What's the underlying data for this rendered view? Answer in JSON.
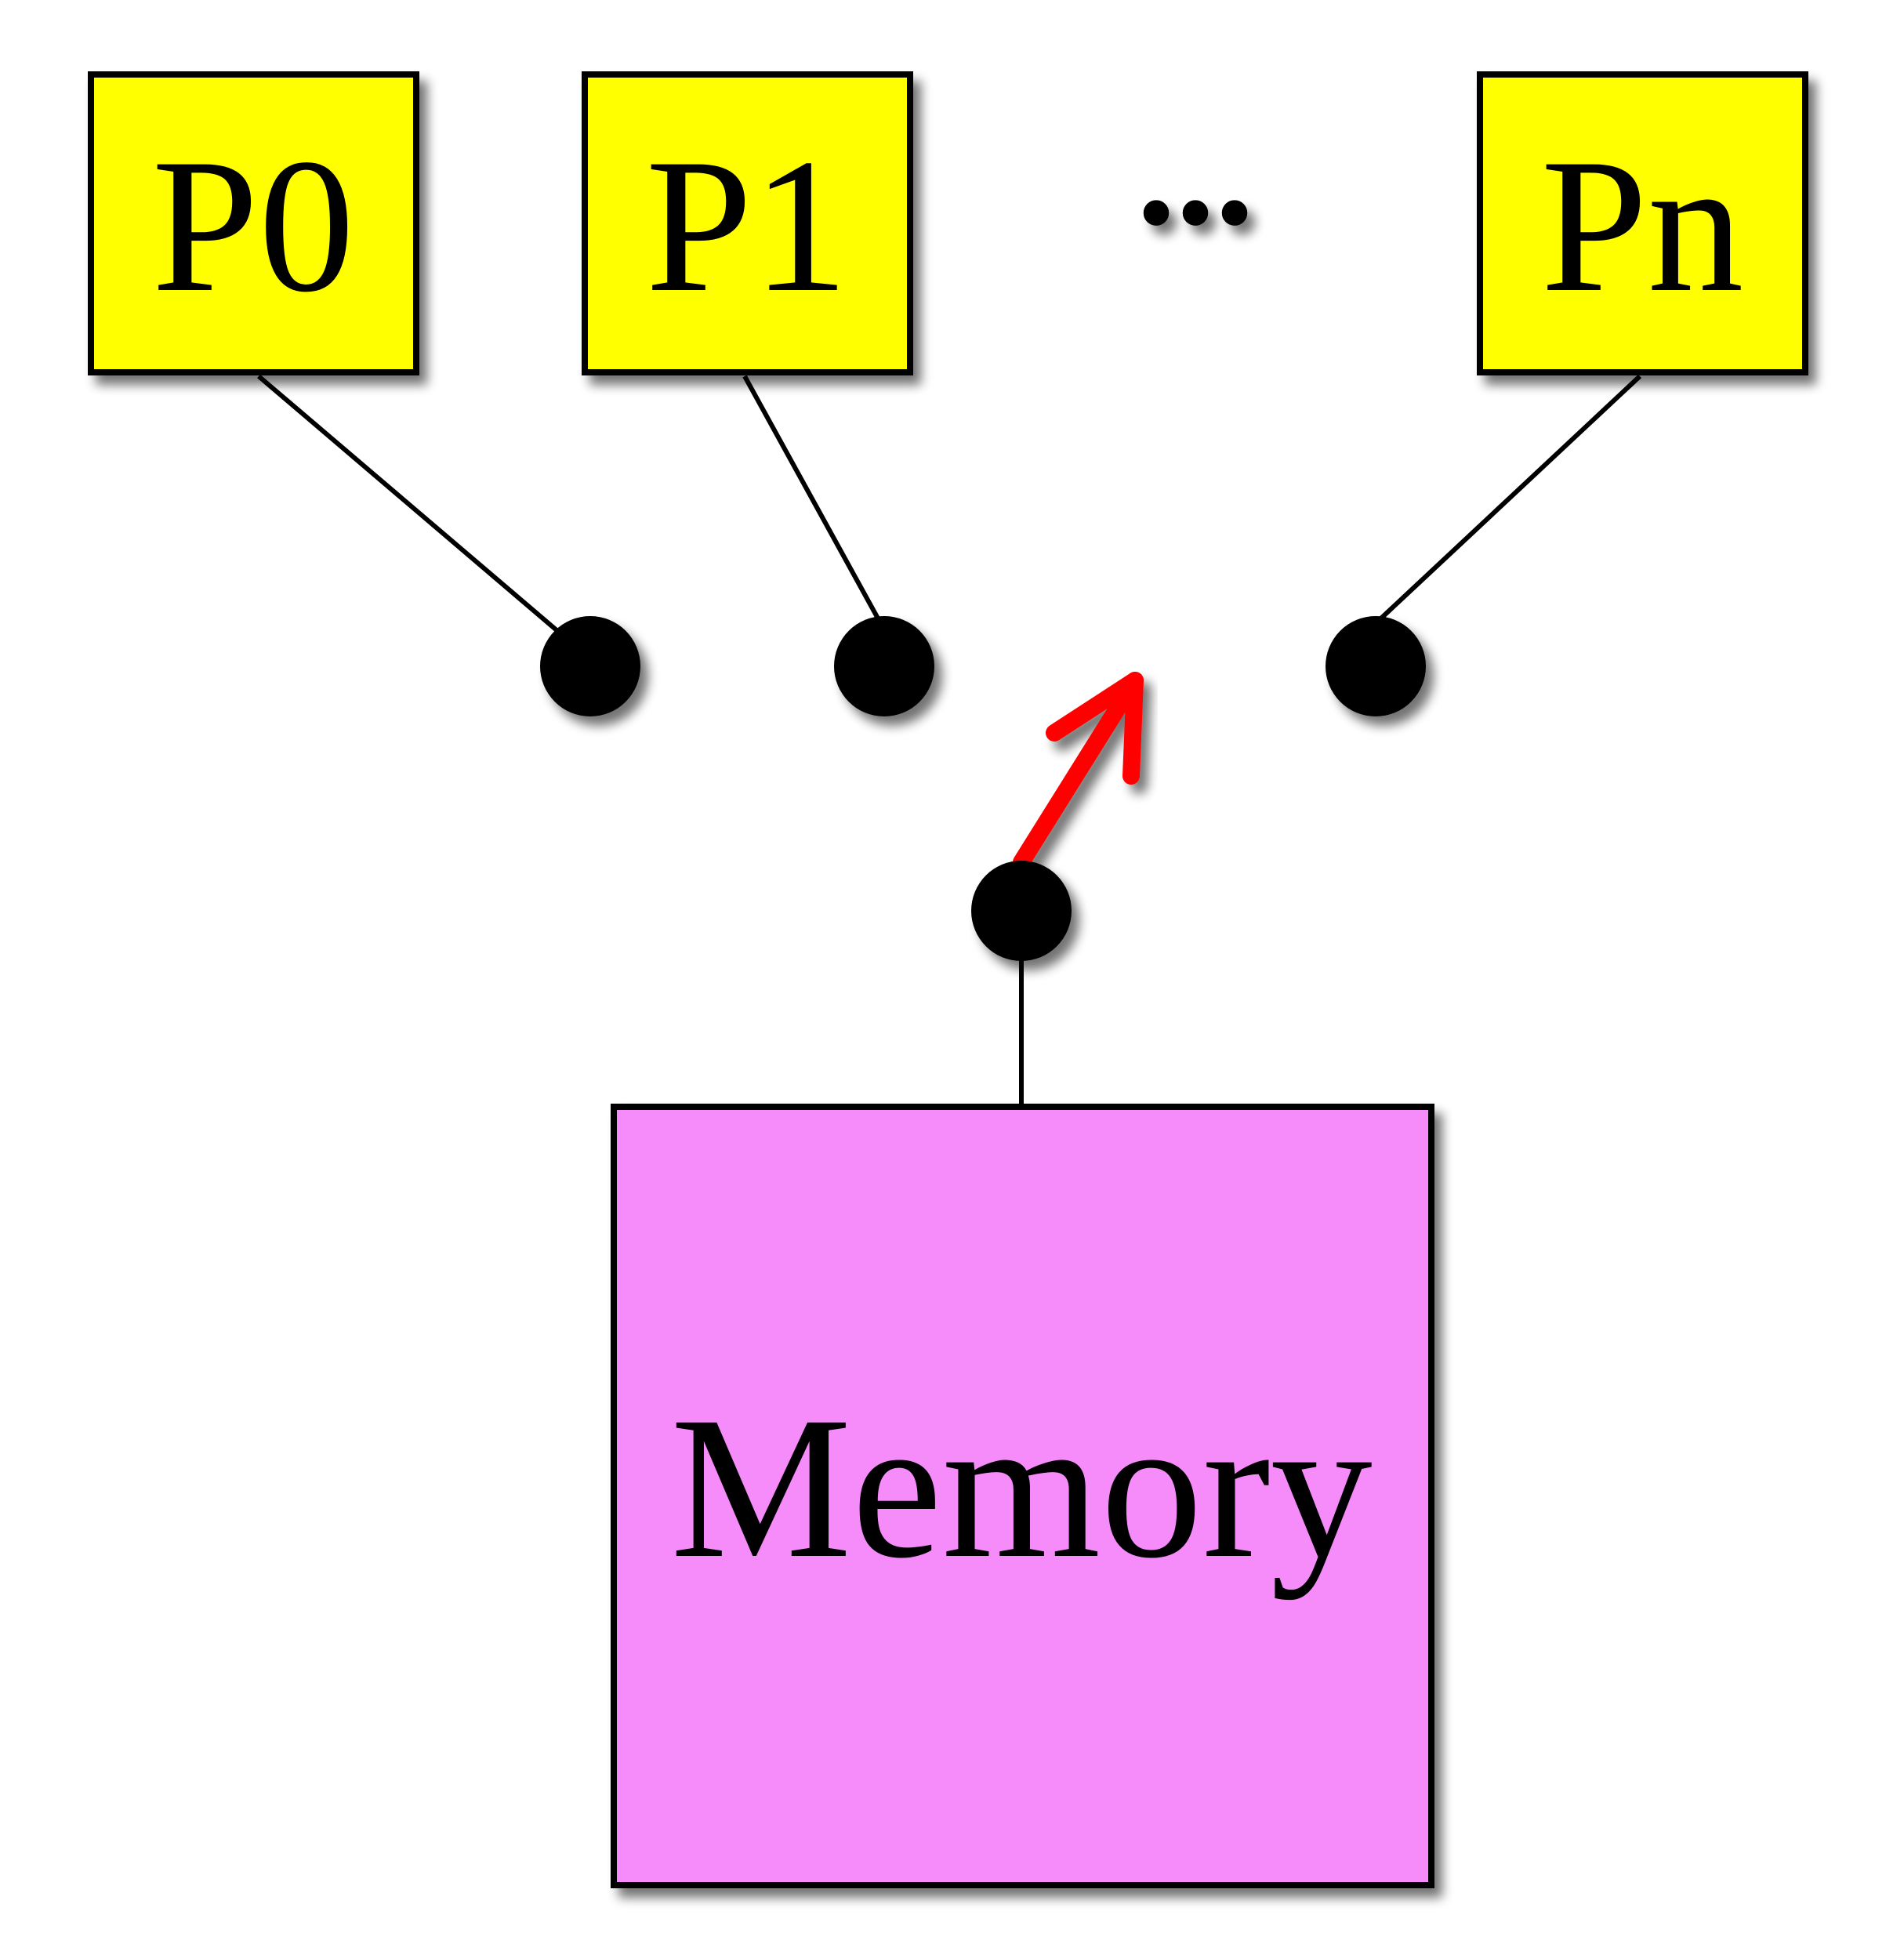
{
  "processors": [
    {
      "label": "P0"
    },
    {
      "label": "P1"
    },
    {
      "label": "Pn"
    }
  ],
  "ellipsis": "...",
  "memory": {
    "label": "Memory"
  },
  "colors": {
    "processor_fill": "#ffff00",
    "memory_fill": "#f68cfa",
    "switch_arrow": "#ff0000",
    "line": "#000000"
  }
}
